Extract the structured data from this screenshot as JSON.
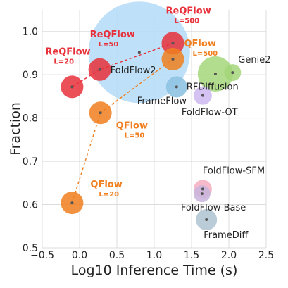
{
  "chart_data": {
    "type": "scatter",
    "xlabel": "Log10 Inference Time (s)",
    "ylabel": "Fraction",
    "xlim": [
      -0.5,
      2.5
    ],
    "ylim": [
      0.5,
      1.05
    ],
    "xticks": [
      "−0.5",
      "0.0",
      "0.5",
      "1.0",
      "1.5",
      "2.0",
      "2.5"
    ],
    "xtick_values": [
      -0.5,
      0,
      0.5,
      1.0,
      1.5,
      2.0,
      2.5
    ],
    "yticks": [
      "0.5",
      "0.6",
      "0.7",
      "0.8",
      "0.9",
      "1.0"
    ],
    "ytick_values": [
      0.5,
      0.6,
      0.7,
      0.8,
      0.9,
      1.0
    ],
    "grid": true,
    "colors": {
      "reqflow": "#e8303a",
      "qflow": "#f07f1f",
      "foldflow2": "#b3dbf7",
      "genie2": "#a4d67a",
      "rfdiffusion": "#8fc3e3",
      "foldflow_ot": "#cdb8f0",
      "foldflow_sfm": "#f5b3c4",
      "foldflow_base": "#c8b4dc",
      "framediff": "#b3c6d3",
      "grid": "#dcdcdc"
    },
    "points": [
      {
        "label": "",
        "sub": "",
        "x": 0.8,
        "y": 0.952,
        "size": 72,
        "color": "foldflow2",
        "alpha": 0.85,
        "dx": 0,
        "dy": 0
      },
      {
        "label": "Genie2",
        "sub": "",
        "x": 2.05,
        "y": 0.905,
        "size": 12,
        "color": "genie2",
        "alpha": 0.85,
        "dx": 8,
        "dy": -14,
        "textcolor": "plain"
      },
      {
        "label": "",
        "sub": "",
        "x": 1.82,
        "y": 0.902,
        "size": 25,
        "color": "genie2",
        "alpha": 0.85,
        "dx": 0,
        "dy": 0
      },
      {
        "label": "FoldFlow2",
        "sub": "",
        "x": 0.3,
        "y": 0.912,
        "size": 0,
        "color": "foldflow2",
        "alpha": 0.85,
        "dx": 0,
        "dy": 0,
        "textcolor": "plain"
      },
      {
        "label": "RFDiffusion",
        "sub": "",
        "x": 1.3,
        "y": 0.872,
        "size": 15,
        "color": "rfdiffusion",
        "alpha": 0.9,
        "dx": 14,
        "dy": 4,
        "textcolor": "plain"
      },
      {
        "label": "",
        "sub": "",
        "x": 1.65,
        "y": 0.852,
        "size": 13,
        "color": "foldflow_ot",
        "alpha": 0.85,
        "dx": 0,
        "dy": 0
      },
      {
        "label": "FoldFlow-SFM",
        "sub": "",
        "x": 1.65,
        "y": 0.636,
        "size": 13,
        "color": "foldflow_sfm",
        "alpha": 0.9,
        "dx": 0,
        "dy": -22,
        "textcolor": "plain"
      },
      {
        "label": "",
        "sub": "",
        "x": 1.64,
        "y": 0.625,
        "size": 12,
        "color": "foldflow_base",
        "alpha": 0.85,
        "dx": 0,
        "dy": 0
      },
      {
        "label": "",
        "sub": "",
        "x": 1.7,
        "y": 0.565,
        "size": 15,
        "color": "framediff",
        "alpha": 0.9,
        "dx": 0,
        "dy": 0
      },
      {
        "label": "ReQFlow",
        "sub": "L=20",
        "x": -0.1,
        "y": 0.872,
        "size": 16,
        "color": "reqflow",
        "alpha": 0.85,
        "dx": -38,
        "dy": -46,
        "textcolor": "reqflow"
      },
      {
        "label": "ReQFlow",
        "sub": "L=50",
        "x": 0.27,
        "y": 0.912,
        "size": 16,
        "color": "reqflow",
        "alpha": 0.85,
        "dx": -14,
        "dy": -46,
        "textcolor": "reqflow"
      },
      {
        "label": "ReQFlow",
        "sub": "L=500",
        "x": 1.25,
        "y": 0.973,
        "size": 16,
        "color": "reqflow",
        "alpha": 0.85,
        "dx": -10,
        "dy": -42,
        "textcolor": "reqflow"
      },
      {
        "label": "QFlow",
        "sub": "L=20",
        "x": -0.1,
        "y": 0.604,
        "size": 16,
        "color": "qflow",
        "alpha": 0.85,
        "dx": 26,
        "dy": -22,
        "textcolor": "qflow"
      },
      {
        "label": "QFlow",
        "sub": "L=50",
        "x": 0.28,
        "y": 0.812,
        "size": 16,
        "color": "qflow",
        "alpha": 0.85,
        "dx": 22,
        "dy": 22,
        "textcolor": "qflow"
      },
      {
        "label": "QFlow",
        "sub": "L=500",
        "x": 1.25,
        "y": 0.936,
        "size": 16,
        "color": "qflow",
        "alpha": 0.85,
        "dx": 16,
        "dy": -18,
        "textcolor": "qflow"
      }
    ],
    "extra_labels": [
      {
        "text": "FoldFlow2",
        "x": 0.3,
        "y": 0.912,
        "dx": 12,
        "dy": 5
      },
      {
        "text": "FrameFlow",
        "x": 1.3,
        "y": 0.872,
        "dx": -56,
        "dy": 24
      },
      {
        "text": "FoldFlow-OT",
        "x": 1.65,
        "y": 0.852,
        "dx": -30,
        "dy": 28
      },
      {
        "text": "FoldFlow-Base",
        "x": 1.64,
        "y": 0.625,
        "dx": -30,
        "dy": 24
      },
      {
        "text": "FrameDiff",
        "x": 1.7,
        "y": 0.565,
        "dx": -4,
        "dy": 26
      }
    ],
    "lines": [
      {
        "series": "ReQFlow",
        "color": "reqflow",
        "points": [
          [
            -0.1,
            0.872
          ],
          [
            0.27,
            0.912
          ],
          [
            1.25,
            0.973
          ]
        ]
      },
      {
        "series": "QFlow",
        "color": "qflow",
        "points": [
          [
            -0.1,
            0.604
          ],
          [
            0.28,
            0.812
          ],
          [
            1.25,
            0.936
          ]
        ]
      }
    ]
  }
}
